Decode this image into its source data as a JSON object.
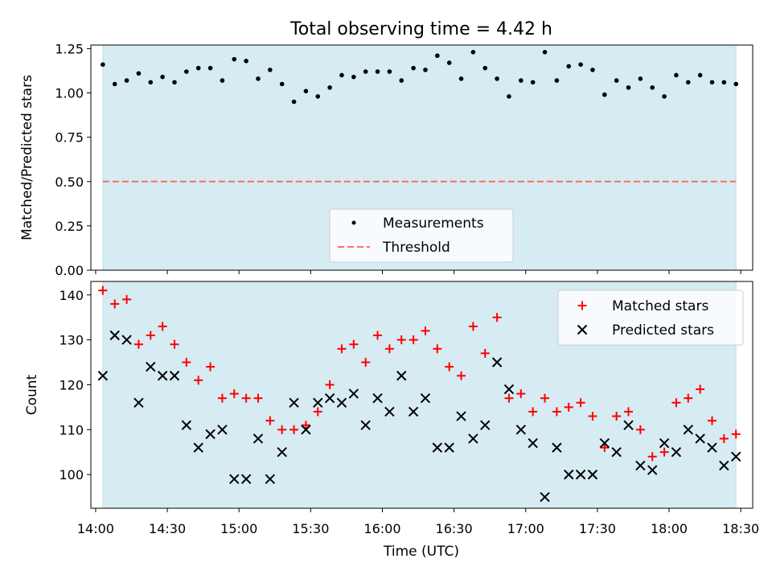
{
  "title": "Total observing time = 4.42 h",
  "xlabel": "Time (UTC)",
  "colors": {
    "band": "#add8e6",
    "band_opacity": 0.5,
    "threshold": "#ff6b6b",
    "matched": "#ff0000",
    "predicted": "#000000",
    "measurement": "#000000"
  },
  "chart_data": [
    {
      "type": "scatter",
      "ylabel": "Matched/Predicted stars",
      "ylim": [
        0,
        1.27
      ],
      "yticks": [
        0,
        0.25,
        0.5,
        0.75,
        1.0,
        1.25
      ],
      "ytick_labels": [
        "0.00",
        "0.25",
        "0.50",
        "0.75",
        "1.00",
        "1.25"
      ],
      "xlim": [
        "13:58",
        "18:35"
      ],
      "xticks": [
        "14:00",
        "14:30",
        "15:00",
        "15:30",
        "16:00",
        "16:30",
        "17:00",
        "17:30",
        "18:00",
        "18:30"
      ],
      "observing_window": [
        "14:03",
        "18:28"
      ],
      "legend": {
        "position": "lower center",
        "entries": [
          "Measurements",
          "Threshold"
        ]
      },
      "series": [
        {
          "name": "Measurements",
          "marker": "dot",
          "x": [
            "14:03",
            "14:08",
            "14:13",
            "14:18",
            "14:23",
            "14:28",
            "14:33",
            "14:38",
            "14:43",
            "14:48",
            "14:53",
            "14:58",
            "15:03",
            "15:08",
            "15:13",
            "15:18",
            "15:23",
            "15:28",
            "15:33",
            "15:38",
            "15:43",
            "15:48",
            "15:53",
            "15:58",
            "16:03",
            "16:08",
            "16:13",
            "16:18",
            "16:23",
            "16:28",
            "16:33",
            "16:38",
            "16:43",
            "16:48",
            "16:53",
            "16:58",
            "17:03",
            "17:08",
            "17:13",
            "17:18",
            "17:23",
            "17:28",
            "17:33",
            "17:38",
            "17:43",
            "17:48",
            "17:53",
            "17:58",
            "18:03",
            "18:08",
            "18:13",
            "18:18",
            "18:23",
            "18:28"
          ],
          "y": [
            1.16,
            1.05,
            1.07,
            1.11,
            1.06,
            1.09,
            1.06,
            1.12,
            1.14,
            1.14,
            1.07,
            1.19,
            1.18,
            1.08,
            1.13,
            1.05,
            0.95,
            1.01,
            0.98,
            1.03,
            1.1,
            1.09,
            1.12,
            1.12,
            1.12,
            1.07,
            1.14,
            1.13,
            1.21,
            1.17,
            1.08,
            1.23,
            1.14,
            1.08,
            0.98,
            1.07,
            1.06,
            1.23,
            1.07,
            1.15,
            1.16,
            1.13,
            0.99,
            1.07,
            1.03,
            1.08,
            1.03,
            0.98,
            1.1,
            1.06,
            1.1,
            1.06,
            1.06,
            1.05
          ]
        },
        {
          "name": "Threshold",
          "marker": "dashed-line",
          "value": 0.5
        }
      ]
    },
    {
      "type": "scatter",
      "ylabel": "Count",
      "ylim": [
        92.5,
        143
      ],
      "yticks": [
        100,
        110,
        120,
        130,
        140
      ],
      "ytick_labels": [
        "100",
        "110",
        "120",
        "130",
        "140"
      ],
      "xlim": [
        "13:58",
        "18:35"
      ],
      "xticks": [
        "14:00",
        "14:30",
        "15:00",
        "15:30",
        "16:00",
        "16:30",
        "17:00",
        "17:30",
        "18:00",
        "18:30"
      ],
      "xtick_labels": [
        "14:00",
        "14:30",
        "15:00",
        "15:30",
        "16:00",
        "16:30",
        "17:00",
        "17:30",
        "18:00",
        "18:30"
      ],
      "observing_window": [
        "14:03",
        "18:28"
      ],
      "legend": {
        "position": "upper right",
        "entries": [
          "Matched stars",
          "Predicted stars"
        ]
      },
      "x": [
        "14:03",
        "14:08",
        "14:13",
        "14:18",
        "14:23",
        "14:28",
        "14:33",
        "14:38",
        "14:43",
        "14:48",
        "14:53",
        "14:58",
        "15:03",
        "15:08",
        "15:13",
        "15:18",
        "15:23",
        "15:28",
        "15:33",
        "15:38",
        "15:43",
        "15:48",
        "15:53",
        "15:58",
        "16:03",
        "16:08",
        "16:13",
        "16:18",
        "16:23",
        "16:28",
        "16:33",
        "16:38",
        "16:43",
        "16:48",
        "16:53",
        "16:58",
        "17:03",
        "17:08",
        "17:13",
        "17:18",
        "17:23",
        "17:28",
        "17:33",
        "17:38",
        "17:43",
        "17:48",
        "17:53",
        "17:58",
        "18:03",
        "18:08",
        "18:13",
        "18:18",
        "18:23",
        "18:28"
      ],
      "series": [
        {
          "name": "Matched stars",
          "marker": "plus",
          "values": [
            141,
            138,
            139,
            129,
            131,
            133,
            129,
            125,
            121,
            124,
            117,
            118,
            117,
            117,
            112,
            110,
            110,
            111,
            114,
            120,
            128,
            129,
            125,
            131,
            128,
            130,
            130,
            132,
            128,
            124,
            122,
            133,
            127,
            135,
            117,
            118,
            114,
            117,
            114,
            115,
            116,
            113,
            106,
            113,
            114,
            110,
            104,
            105,
            116,
            117,
            119,
            112,
            108,
            109
          ]
        },
        {
          "name": "Predicted stars",
          "marker": "x",
          "values": [
            122,
            131,
            130,
            116,
            124,
            122,
            122,
            111,
            106,
            109,
            110,
            99,
            99,
            108,
            99,
            105,
            116,
            110,
            116,
            117,
            116,
            118,
            111,
            117,
            114,
            122,
            114,
            117,
            106,
            106,
            113,
            108,
            111,
            125,
            119,
            110,
            107,
            95,
            106,
            100,
            100,
            100,
            107,
            105,
            111,
            102,
            101,
            107,
            105,
            110,
            108,
            106,
            102,
            104
          ]
        }
      ]
    }
  ]
}
